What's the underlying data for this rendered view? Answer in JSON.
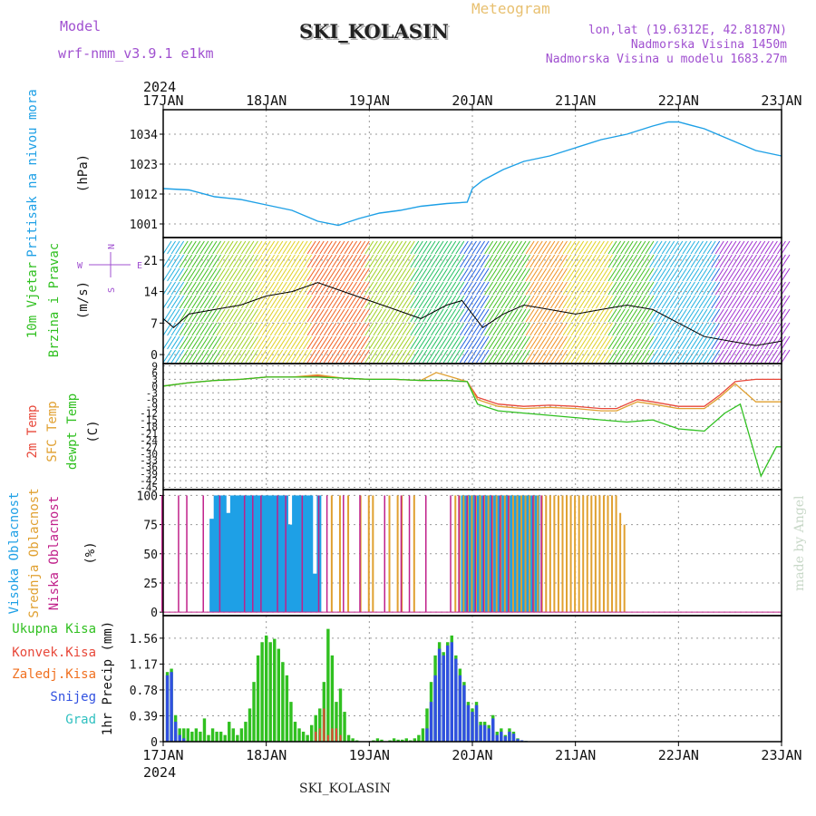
{
  "header": {
    "model_label": "Model",
    "model_name": "wrf-nmm_v3.9.1 e1km",
    "title": "SKI_KOLASIN",
    "subtitle": "Meteogram",
    "location_coords": "lon,lat (19.6312E, 42.8187N)",
    "elevation_real": "Nadmorska Visina 1450m",
    "elevation_model": "Nadmorska Visina u modelu 1683.27m",
    "year_top": "2024",
    "year_bottom": "2024",
    "footer_title": "SKI_KOLASIN",
    "credit": "made by Angel"
  },
  "colors": {
    "pressure": "#1ea0e6",
    "wind_speed": "#000000",
    "temp_2m": "#e8483a",
    "temp_sfc": "#e0a030",
    "temp_dew": "#30c020",
    "cloud_high": "#1ea0e6",
    "cloud_mid": "#e0a030",
    "cloud_low": "#c0208a",
    "precip_total": "#30c020",
    "precip_conv": "#e8483a",
    "precip_frozen": "#f07020",
    "precip_snow": "#3050e0",
    "precip_graupel": "#30c0c0",
    "grid": "#999999"
  },
  "chart_data": [
    {
      "type": "line",
      "panel": "pressure",
      "ylabel_lines": [
        "Pritisak na nivou mora",
        "(hPa)"
      ],
      "yticks": [
        1001,
        1012,
        1023,
        1034
      ],
      "ylim": [
        996,
        1043
      ],
      "x_ticks": [
        "17JAN",
        "18JAN",
        "19JAN",
        "20JAN",
        "21JAN",
        "22JAN",
        "23JAN"
      ],
      "x_range_days": [
        17,
        23
      ],
      "series": [
        {
          "x": [
            17.0,
            17.25,
            17.5,
            17.75,
            18.0,
            18.25,
            18.5,
            18.7,
            18.9,
            19.1,
            19.3,
            19.5,
            19.75,
            19.95,
            20.0,
            20.1,
            20.3,
            20.5,
            20.75,
            21.0,
            21.25,
            21.5,
            21.75,
            21.9,
            22.0,
            22.25,
            22.5,
            22.75,
            23.0
          ],
          "y": [
            1014,
            1013.5,
            1011,
            1010,
            1008,
            1006,
            1002,
            1000.5,
            1003,
            1005,
            1006,
            1007.5,
            1008.5,
            1009,
            1014,
            1017,
            1021,
            1024,
            1026,
            1029,
            1032,
            1034,
            1037,
            1038.5,
            1038.5,
            1036,
            1032,
            1028,
            1026
          ]
        }
      ]
    },
    {
      "type": "line",
      "panel": "wind",
      "ylabel_lines": [
        "10m Vjetar",
        "Brzina i Pravac",
        "(m/s)"
      ],
      "compass": [
        "N",
        "W",
        "E",
        "S"
      ],
      "yticks": [
        0,
        7,
        14,
        21
      ],
      "ylim": [
        -2,
        26
      ],
      "series": [
        {
          "x": [
            17.0,
            17.1,
            17.25,
            17.5,
            17.75,
            18.0,
            18.25,
            18.5,
            18.75,
            19.0,
            19.25,
            19.5,
            19.75,
            19.9,
            20.1,
            20.3,
            20.5,
            20.75,
            21.0,
            21.25,
            21.5,
            21.75,
            22.0,
            22.25,
            22.5,
            22.75,
            23.0
          ],
          "y": [
            8,
            6,
            9,
            10,
            11,
            13,
            14,
            16,
            14,
            12,
            10,
            8,
            11,
            12,
            6,
            9,
            11,
            10,
            9,
            10,
            11,
            10,
            7,
            4,
            3,
            2,
            3
          ]
        }
      ]
    },
    {
      "type": "line",
      "panel": "temperature",
      "ylabel_lines": [
        "2m Temp",
        "SFC Temp",
        "dewpt Temp",
        "(C)"
      ],
      "yticks": [
        9,
        6,
        3,
        0,
        -3,
        -6,
        -9,
        -12,
        -15,
        -18,
        -21,
        -24,
        -27,
        -30,
        -33,
        -36,
        -39,
        -42,
        -45
      ],
      "ylim": [
        -46,
        10
      ],
      "series": [
        {
          "name": "2m Temp",
          "x": [
            17.0,
            17.25,
            17.5,
            17.75,
            18.0,
            18.25,
            18.5,
            18.75,
            19.0,
            19.25,
            19.5,
            19.75,
            19.95,
            20.05,
            20.25,
            20.5,
            20.75,
            21.0,
            21.25,
            21.4,
            21.6,
            21.75,
            22.0,
            22.25,
            22.4,
            22.55,
            22.75,
            23.0
          ],
          "y": [
            0,
            1.5,
            2.5,
            3,
            4,
            4,
            4.5,
            3.5,
            3,
            3,
            2.5,
            2.5,
            2,
            -5,
            -8,
            -9,
            -8.5,
            -9,
            -10,
            -10,
            -6,
            -7,
            -9,
            -9,
            -4,
            2,
            3,
            3
          ]
        },
        {
          "name": "SFC Temp",
          "x": [
            17.0,
            17.25,
            17.5,
            17.75,
            18.0,
            18.25,
            18.5,
            18.75,
            19.0,
            19.25,
            19.5,
            19.65,
            19.8,
            19.95,
            20.05,
            20.25,
            20.5,
            20.75,
            21.0,
            21.25,
            21.4,
            21.6,
            21.75,
            22.0,
            22.25,
            22.4,
            22.55,
            22.75,
            23.0
          ],
          "y": [
            0,
            1.5,
            2.5,
            3,
            4,
            4,
            5,
            3.5,
            3,
            3,
            2.5,
            6,
            4,
            2,
            -6,
            -9,
            -10,
            -9.5,
            -10,
            -11,
            -11,
            -7,
            -8,
            -10,
            -10,
            -5,
            1,
            -7,
            -7
          ]
        },
        {
          "name": "dewpt Temp",
          "x": [
            17.0,
            17.25,
            17.5,
            17.75,
            18.0,
            18.25,
            18.5,
            18.75,
            19.0,
            19.25,
            19.5,
            19.75,
            19.95,
            20.05,
            20.25,
            20.5,
            20.75,
            21.0,
            21.25,
            21.5,
            21.75,
            22.0,
            22.25,
            22.45,
            22.6,
            22.8,
            22.95,
            23.0
          ],
          "y": [
            0,
            1.5,
            2.5,
            3,
            4,
            4,
            4,
            3.5,
            3,
            3,
            2.5,
            2.5,
            2,
            -8,
            -11,
            -12,
            -13,
            -14,
            -15,
            -16,
            -15,
            -19,
            -20,
            -12,
            -8,
            -40,
            -27,
            -27
          ]
        }
      ]
    },
    {
      "type": "bar",
      "panel": "cloud",
      "ylabel_lines": [
        "Visoka Oblacnost",
        "Srednja Oblacnost",
        "Niska Oblacnost",
        "(%)"
      ],
      "yticks": [
        0,
        25,
        50,
        75,
        100
      ],
      "ylim": [
        -3,
        105
      ],
      "series": [
        {
          "name": "Visoka Oblacnost",
          "start": 17.45,
          "step": 0.04,
          "values": [
            80,
            100,
            100,
            100,
            85,
            100,
            100,
            100,
            100,
            100,
            100,
            100,
            100,
            100,
            100,
            100,
            100,
            100,
            100,
            75,
            100,
            100,
            100,
            100,
            100,
            33,
            100,
            0,
            0,
            0,
            0,
            0,
            0,
            0,
            0,
            0,
            0,
            0,
            0,
            0,
            0,
            0,
            0,
            0,
            0,
            0,
            0,
            0,
            0,
            0,
            0,
            0,
            0,
            0,
            0,
            0,
            0,
            0,
            0,
            0,
            0,
            100,
            100,
            100,
            100,
            100,
            100,
            100,
            100,
            100,
            100,
            100,
            100,
            100,
            100,
            100,
            100,
            100,
            100,
            100
          ]
        },
        {
          "name": "Srednja Oblacnost",
          "start": 18.6,
          "step": 0.04,
          "values": [
            100,
            0,
            100,
            0,
            100,
            0,
            0,
            100,
            0,
            100,
            100,
            0,
            0,
            0,
            100,
            0,
            100,
            100,
            0,
            0,
            100,
            0,
            0,
            0,
            0,
            0,
            0,
            0,
            0,
            0,
            100,
            100,
            100,
            100,
            100,
            100,
            100,
            100,
            100,
            100,
            100,
            100,
            100,
            100,
            100,
            100,
            100,
            100,
            100,
            100,
            100,
            100,
            100,
            100,
            100,
            100,
            100,
            100,
            100,
            100,
            100,
            100,
            100,
            100,
            100,
            100,
            100,
            100,
            100,
            100,
            85,
            75
          ]
        },
        {
          "name": "Niska Oblacnost",
          "start": 17.0,
          "step": 0.08,
          "values": [
            100,
            0,
            100,
            100,
            0,
            100,
            0,
            100,
            0,
            0,
            100,
            100,
            100,
            0,
            100,
            100,
            0,
            100,
            0,
            100,
            100,
            0,
            100,
            0,
            100,
            0,
            0,
            100,
            0,
            100,
            100,
            0,
            100,
            0,
            0,
            100,
            100,
            100,
            100,
            100,
            100,
            100,
            100,
            0,
            0,
            100,
            100
          ]
        }
      ]
    },
    {
      "type": "bar",
      "panel": "precip",
      "ylabel_lines": [
        "Ukupna Kisa",
        "Konvek.Kisa",
        "Zaledj.Kisa",
        "Snijeg",
        "Grad",
        "1hr Precip (mm)"
      ],
      "yticks": [
        0,
        0.39,
        0.78,
        1.17,
        1.56
      ],
      "ylim": [
        0,
        1.9
      ],
      "start": 17.04,
      "step": 0.04,
      "total": [
        1.05,
        1.1,
        0.4,
        0.2,
        0.2,
        0.2,
        0.15,
        0.2,
        0.15,
        0.35,
        0.1,
        0.2,
        0.15,
        0.15,
        0.1,
        0.3,
        0.2,
        0.1,
        0.2,
        0.3,
        0.5,
        0.9,
        1.3,
        1.5,
        1.6,
        1.5,
        1.55,
        1.4,
        1.2,
        1.0,
        0.6,
        0.3,
        0.2,
        0.15,
        0.1,
        0.25,
        0.4,
        0.5,
        0.9,
        1.7,
        1.3,
        0.6,
        0.8,
        0.45,
        0.1,
        0.05,
        0.02,
        0.0,
        0.0,
        0.0,
        0.02,
        0.05,
        0.03,
        0.0,
        0.02,
        0.05,
        0.03,
        0.03,
        0.05,
        0.02,
        0.05,
        0.1,
        0.2,
        0.5,
        0.9,
        1.3,
        1.5,
        1.35,
        1.5,
        1.6,
        1.3,
        1.1,
        0.9,
        0.6,
        0.5,
        0.6,
        0.3,
        0.3,
        0.25,
        0.4,
        0.15,
        0.2,
        0.1,
        0.2,
        0.15,
        0.05,
        0.02,
        0.01,
        0.0
      ],
      "convective": [
        0,
        0,
        0,
        0,
        0,
        0,
        0,
        0,
        0,
        0,
        0,
        0,
        0,
        0,
        0,
        0,
        0,
        0,
        0,
        0,
        0,
        0,
        0,
        0,
        0,
        0,
        0,
        0,
        0,
        0,
        0,
        0,
        0,
        0,
        0,
        0,
        0.15,
        0.2,
        0.5,
        0.1,
        0.2,
        0.2,
        0.1,
        0,
        0,
        0,
        0,
        0,
        0,
        0,
        0,
        0,
        0,
        0,
        0,
        0,
        0,
        0,
        0,
        0,
        0,
        0,
        0,
        0,
        0,
        0,
        0,
        0,
        0,
        0,
        0,
        0,
        0,
        0,
        0,
        0,
        0,
        0,
        0,
        0,
        0,
        0,
        0,
        0,
        0,
        0,
        0,
        0,
        0
      ],
      "snow": [
        1.0,
        1.05,
        0.3,
        0.1,
        0.05,
        0.0,
        0.0,
        0.0,
        0.0,
        0.0,
        0.0,
        0.0,
        0.0,
        0.0,
        0.0,
        0.0,
        0.0,
        0.0,
        0.0,
        0.0,
        0.0,
        0.0,
        0.0,
        0.0,
        0.0,
        0.0,
        0.0,
        0.0,
        0.0,
        0.0,
        0.0,
        0.0,
        0.0,
        0.0,
        0.0,
        0.0,
        0.0,
        0.0,
        0.0,
        0.0,
        0.0,
        0.0,
        0.0,
        0.0,
        0.0,
        0.0,
        0.0,
        0.0,
        0.0,
        0.0,
        0.0,
        0.0,
        0.0,
        0.0,
        0.0,
        0.0,
        0.0,
        0.0,
        0.0,
        0.0,
        0.0,
        0.0,
        0.0,
        0.2,
        0.6,
        1.0,
        1.4,
        1.3,
        1.45,
        1.5,
        1.25,
        1.0,
        0.85,
        0.55,
        0.45,
        0.55,
        0.25,
        0.25,
        0.2,
        0.35,
        0.1,
        0.15,
        0.08,
        0.15,
        0.12,
        0.04,
        0.02,
        0.01,
        0.0
      ]
    }
  ]
}
